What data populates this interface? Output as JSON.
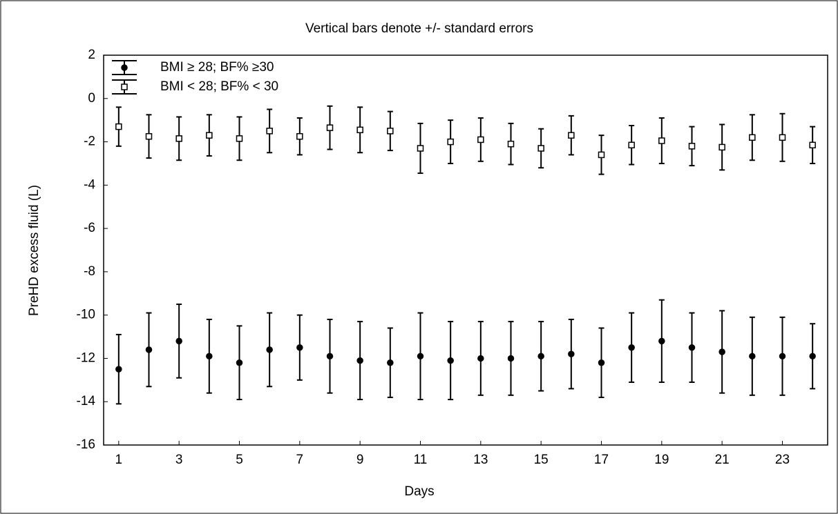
{
  "chart_data": {
    "type": "errorbar",
    "title": "Vertical bars denote +/- standard errors",
    "xlabel": "Days",
    "ylabel": "PreHD excess fluid (L)",
    "x": [
      1,
      2,
      3,
      4,
      5,
      6,
      7,
      8,
      9,
      10,
      11,
      12,
      13,
      14,
      15,
      16,
      17,
      18,
      19,
      20,
      21,
      22,
      23,
      24
    ],
    "xlim": [
      0.5,
      24.5
    ],
    "xticks": [
      1,
      3,
      5,
      7,
      9,
      11,
      13,
      15,
      17,
      19,
      21,
      23
    ],
    "ylim": [
      -16,
      2
    ],
    "yticks": [
      -16,
      -14,
      -12,
      -10,
      -8,
      -6,
      -4,
      -2,
      0,
      2
    ],
    "legend_position": "upper left",
    "series": [
      {
        "name": "BMI ≥ 28; BF% ≥30",
        "color": "#000000",
        "marker": "circle",
        "marker_fill": "#000000",
        "values": [
          -12.5,
          -11.6,
          -11.2,
          -11.9,
          -12.2,
          -11.6,
          -11.5,
          -11.9,
          -12.1,
          -12.2,
          -11.9,
          -12.1,
          -12.0,
          -12.0,
          -11.9,
          -11.8,
          -12.2,
          -11.5,
          -11.2,
          -11.5,
          -11.7,
          -11.9,
          -11.9,
          -11.9
        ],
        "errors": [
          1.6,
          1.7,
          1.7,
          1.7,
          1.7,
          1.7,
          1.5,
          1.7,
          1.8,
          1.6,
          2.0,
          1.8,
          1.7,
          1.7,
          1.6,
          1.6,
          1.6,
          1.6,
          1.9,
          1.6,
          1.9,
          1.8,
          1.8,
          1.5
        ]
      },
      {
        "name": "BMI < 28; BF% < 30",
        "color": "#000000",
        "marker": "square",
        "marker_fill": "#ffffff",
        "values": [
          -1.3,
          -1.75,
          -1.85,
          -1.7,
          -1.85,
          -1.5,
          -1.75,
          -1.35,
          -1.45,
          -1.5,
          -2.3,
          -2.0,
          -1.9,
          -2.1,
          -2.3,
          -1.7,
          -2.6,
          -2.15,
          -1.95,
          -2.2,
          -2.25,
          -1.8,
          -1.8,
          -2.15
        ],
        "errors": [
          0.9,
          1.0,
          1.0,
          0.95,
          1.0,
          1.0,
          0.85,
          1.0,
          1.05,
          0.9,
          1.15,
          1.0,
          1.0,
          0.95,
          0.9,
          0.9,
          0.9,
          0.9,
          1.05,
          0.9,
          1.05,
          1.05,
          1.1,
          0.85
        ]
      }
    ]
  }
}
